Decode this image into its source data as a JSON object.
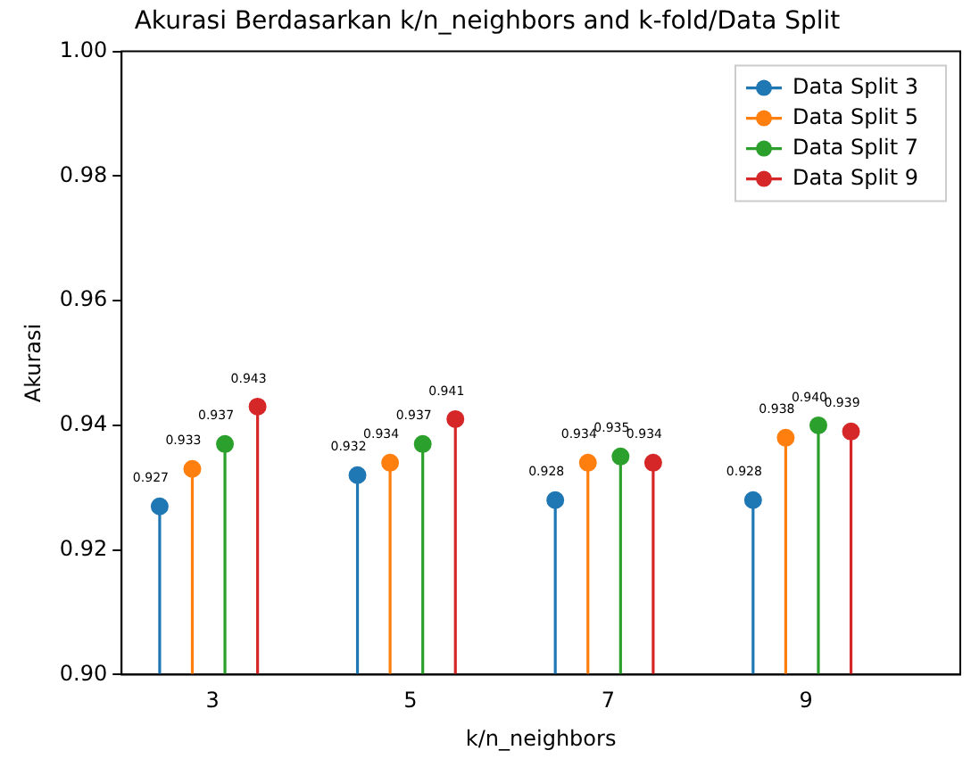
{
  "chart_data": {
    "type": "lollipop",
    "title": "Akurasi Berdasarkan k/n_neighbors and k-fold/Data Split",
    "xlabel": "k/n_neighbors",
    "ylabel": "Akurasi",
    "categories": [
      "3",
      "5",
      "7",
      "9"
    ],
    "series": [
      {
        "name": "Data Split 3",
        "color": "#1f77b4",
        "values": [
          0.927,
          0.932,
          0.928,
          0.928
        ],
        "value_labels": [
          "0.927",
          "0.932",
          "0.928",
          "0.928"
        ]
      },
      {
        "name": "Data Split 5",
        "color": "#ff7f0e",
        "values": [
          0.933,
          0.934,
          0.934,
          0.938
        ],
        "value_labels": [
          "0.933",
          "0.934",
          "0.934",
          "0.938"
        ]
      },
      {
        "name": "Data Split 7",
        "color": "#2ca02c",
        "values": [
          0.937,
          0.937,
          0.935,
          0.94
        ],
        "value_labels": [
          "0.937",
          "0.937",
          "0.935",
          "0.940"
        ]
      },
      {
        "name": "Data Split 9",
        "color": "#d62728",
        "values": [
          0.943,
          0.941,
          0.934,
          0.939
        ],
        "value_labels": [
          "0.943",
          "0.941",
          "0.934",
          "0.939"
        ]
      }
    ],
    "ylim": [
      0.9,
      1.0
    ],
    "yticks": [
      {
        "value": 0.9,
        "label": "0.90"
      },
      {
        "value": 0.92,
        "label": "0.92"
      },
      {
        "value": 0.94,
        "label": "0.94"
      },
      {
        "value": 0.96,
        "label": "0.96"
      },
      {
        "value": 0.98,
        "label": "0.98"
      },
      {
        "value": 1.0,
        "label": "1.00"
      }
    ],
    "grid": false,
    "legend": "top right",
    "marker": "circle"
  }
}
